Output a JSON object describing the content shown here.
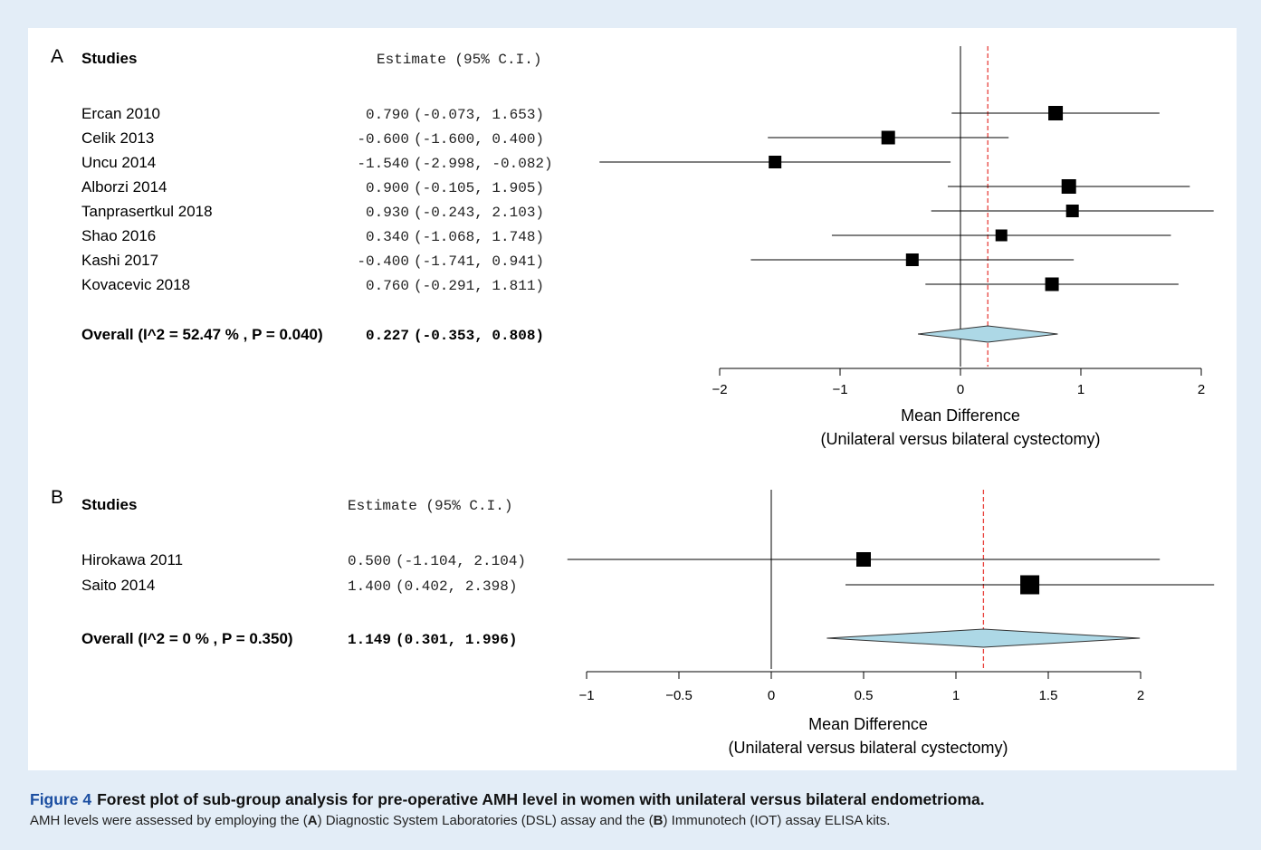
{
  "chart_data": [
    {
      "type": "forest",
      "panel_label": "A",
      "studies_header": "Studies",
      "estimate_header": "Estimate (95% C.I.)",
      "studies": [
        {
          "name": "Ercan  2010",
          "estimate": 0.79,
          "lower": -0.073,
          "upper": 1.653,
          "est_text": "0.790",
          "ci_text": "(-0.073,  1.653)"
        },
        {
          "name": "Celik  2013",
          "estimate": -0.6,
          "lower": -1.6,
          "upper": 0.4,
          "est_text": "-0.600",
          "ci_text": "(-1.600,  0.400)"
        },
        {
          "name": "Uncu  2014",
          "estimate": -1.54,
          "lower": -2.998,
          "upper": -0.082,
          "est_text": "-1.540",
          "ci_text": "(-2.998, -0.082)"
        },
        {
          "name": "Alborzi  2014",
          "estimate": 0.9,
          "lower": -0.105,
          "upper": 1.905,
          "est_text": "0.900",
          "ci_text": "(-0.105,  1.905)"
        },
        {
          "name": "Tanprasertkul 2018",
          "estimate": 0.93,
          "lower": -0.243,
          "upper": 2.103,
          "est_text": "0.930",
          "ci_text": "(-0.243,  2.103)"
        },
        {
          "name": "Shao 2016",
          "estimate": 0.34,
          "lower": -1.068,
          "upper": 1.748,
          "est_text": "0.340",
          "ci_text": "(-1.068,  1.748)"
        },
        {
          "name": "Kashi 2017",
          "estimate": -0.4,
          "lower": -1.741,
          "upper": 0.941,
          "est_text": "-0.400",
          "ci_text": "(-1.741,  0.941)"
        },
        {
          "name": "Kovacevic 2018",
          "estimate": 0.76,
          "lower": -0.291,
          "upper": 1.811,
          "est_text": "0.760",
          "ci_text": "(-0.291,  1.811)"
        }
      ],
      "overall": {
        "label": "Overall (I^2 = 52.47 % , P = 0.040)",
        "estimate": 0.227,
        "lower": -0.353,
        "upper": 0.808,
        "est_text": "0.227",
        "ci_text": "(-0.353,  0.808)"
      },
      "x_ticks": [
        -2,
        -1,
        0,
        1,
        2
      ],
      "x_tick_labels": [
        "−2",
        "−1",
        "0",
        "1",
        "2"
      ],
      "xlim": [
        -2,
        2
      ],
      "xlabel": "Mean Difference",
      "xlabel2": "(Unilateral versus bilateral cystectomy)",
      "reference_line": 0,
      "pooled_line": 0.227
    },
    {
      "type": "forest",
      "panel_label": "B",
      "studies_header": "Studies",
      "estimate_header": "Estimate (95% C.I.)",
      "studies": [
        {
          "name": "Hirokawa  2011",
          "estimate": 0.5,
          "lower": -1.104,
          "upper": 2.104,
          "est_text": "0.500",
          "ci_text": "(-1.104, 2.104)"
        },
        {
          "name": "Saito 2014",
          "estimate": 1.4,
          "lower": 0.402,
          "upper": 2.398,
          "est_text": "1.400",
          "ci_text": "(0.402, 2.398)"
        }
      ],
      "overall": {
        "label": "Overall (I^2 = 0 % , P = 0.350)",
        "estimate": 1.149,
        "lower": 0.301,
        "upper": 1.996,
        "est_text": "1.149",
        "ci_text": "(0.301, 1.996)"
      },
      "x_ticks": [
        -1,
        -0.5,
        0,
        0.5,
        1,
        1.5,
        2
      ],
      "x_tick_labels": [
        "−1",
        "−0.5",
        "0",
        "0.5",
        "1",
        "1.5",
        "2"
      ],
      "xlim": [
        -1,
        2
      ],
      "xlabel": "Mean Difference",
      "xlabel2": "(Unilateral versus bilateral cystectomy)",
      "reference_line": 0,
      "pooled_line": 1.149
    }
  ],
  "colors": {
    "background": "#e3edf7",
    "pooled_line": "#e8413c",
    "diamond_fill": "#add8e6",
    "figure_label": "#1b4ea1"
  },
  "caption": {
    "figure_label": "Figure 4",
    "title": "Forest plot of sub-group analysis for pre-operative AMH level in women with unilateral versus bilateral endometrioma.",
    "text_1": "AMH levels were assessed by employing the (",
    "bold_a": "A",
    "text_2": ") Diagnostic System Laboratories (DSL) assay and the (",
    "bold_b": "B",
    "text_3": ") Immunotech (IOT) assay ELISA kits."
  }
}
